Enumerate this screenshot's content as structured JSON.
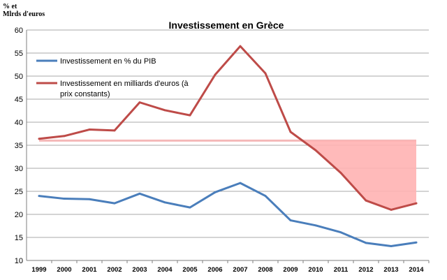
{
  "unit_label": {
    "line1": "% et",
    "line2": "Mlrds d'euros"
  },
  "chart_data": {
    "type": "line",
    "title": "Investissement en Grèce",
    "categories": [
      "1999",
      "2000",
      "2001",
      "2002",
      "2003",
      "2004",
      "2005",
      "2006",
      "2007",
      "2008",
      "2009",
      "2010",
      "2011",
      "2012",
      "2013",
      "2014"
    ],
    "ylim": [
      10,
      60
    ],
    "yticks": [
      10,
      15,
      20,
      25,
      30,
      35,
      40,
      45,
      50,
      55,
      60
    ],
    "grid": "horizontal",
    "legend_position": "top-left",
    "series": [
      {
        "name": "Investissement en % du PIB",
        "color": "#4a7ebb",
        "values": [
          24.0,
          23.4,
          23.3,
          22.4,
          24.5,
          22.6,
          21.5,
          24.8,
          26.8,
          24.0,
          18.7,
          17.6,
          16.1,
          13.8,
          13.1,
          13.9
        ]
      },
      {
        "name": "Investissement en milliards d'euros (à prix constants)",
        "legend_line1": "Investissement en milliards d'euros (à",
        "legend_line2": "prix constants)",
        "color": "#be4b48",
        "values": [
          36.4,
          37.0,
          38.4,
          38.2,
          44.3,
          42.6,
          41.5,
          50.3,
          56.5,
          50.6,
          37.9,
          33.9,
          29.0,
          23.0,
          21.0,
          22.4
        ]
      }
    ],
    "annotation": {
      "type": "shaded-gap",
      "reference_level": 36.0,
      "fill_color": "#ffb3b3",
      "line_color": "#f4b8b8",
      "gap_starts_after": "2009",
      "gap_ends": "2014"
    }
  }
}
